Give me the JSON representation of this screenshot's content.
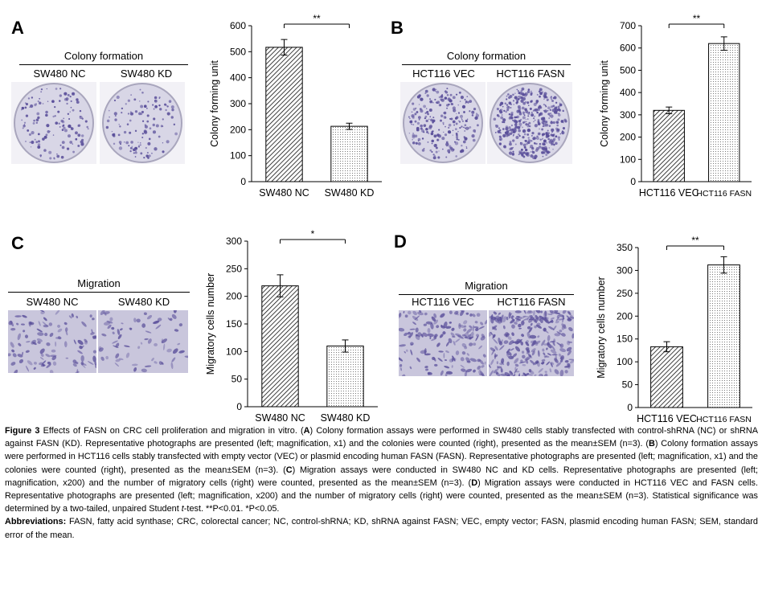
{
  "panels": {
    "A": {
      "letter": "A",
      "group_label": "Colony formation",
      "samples": [
        "SW480 NC",
        "SW480 KD"
      ]
    },
    "B": {
      "letter": "B",
      "group_label": "Colony formation",
      "samples": [
        "HCT116 VEC",
        "HCT116 FASN"
      ]
    },
    "C": {
      "letter": "C",
      "group_label": "Migration",
      "samples": [
        "SW480 NC",
        "SW480 KD"
      ]
    },
    "D": {
      "letter": "D",
      "group_label": "Migration",
      "samples": [
        "HCT116 VEC",
        "HCT116 FASN"
      ]
    }
  },
  "chart_data": [
    {
      "id": "A",
      "type": "bar",
      "categories": [
        "SW480 NC",
        "SW480 KD"
      ],
      "values": [
        517,
        213
      ],
      "errors": [
        30,
        12
      ],
      "ylabel": "Colony forming unit",
      "ylim": [
        0,
        600
      ],
      "yticks": [
        0,
        100,
        200,
        300,
        400,
        500,
        600
      ],
      "significance": "**",
      "patterns": [
        "hatch",
        "dots"
      ]
    },
    {
      "id": "B",
      "type": "bar",
      "categories": [
        "HCT116 VEC",
        "HCT116 FASN"
      ],
      "values": [
        320,
        620
      ],
      "errors": [
        15,
        30
      ],
      "ylabel": "Colony forming unit",
      "ylim": [
        0,
        700
      ],
      "yticks": [
        0,
        100,
        200,
        300,
        400,
        500,
        600,
        700
      ],
      "significance": "**",
      "patterns": [
        "hatch",
        "dots"
      ]
    },
    {
      "id": "C",
      "type": "bar",
      "categories": [
        "SW480 NC",
        "SW480 KD"
      ],
      "values": [
        219,
        110
      ],
      "errors": [
        20,
        11
      ],
      "ylabel": "Migratory cells number",
      "ylim": [
        0,
        300
      ],
      "yticks": [
        0,
        50,
        100,
        150,
        200,
        250,
        300
      ],
      "significance": "*",
      "patterns": [
        "hatch",
        "dots"
      ]
    },
    {
      "id": "D",
      "type": "bar",
      "categories": [
        "HCT116 VEC",
        "HCT116 FASN"
      ],
      "values": [
        133,
        312
      ],
      "errors": [
        11,
        18
      ],
      "ylabel": "Migratory cells number",
      "ylim": [
        0,
        350
      ],
      "yticks": [
        0,
        50,
        100,
        150,
        200,
        250,
        300,
        350
      ],
      "significance": "**",
      "patterns": [
        "hatch",
        "dots"
      ]
    }
  ],
  "caption": {
    "figure_label": "Figure 3",
    "lead": "Effects of FASN on CRC cell proliferation and migration in vitro. (",
    "a_letter": "A",
    "a_text": ") Colony formation assays were performed in SW480 cells stably transfected with control-shRNA (NC) or shRNA against FASN (KD). Representative photographs are presented (left; magnification, x1) and the colonies were counted (right), presented as the mean±SEM (n=3). (",
    "b_letter": "B",
    "b_text": ") Colony formation assays were performed in HCT116 cells stably transfected with empty vector (VEC) or plasmid encoding human FASN (FASN). Representative photographs are presented (left; magnification, x1) and the colonies were counted (right), presented as the mean±SEM (n=3). (",
    "c_letter": "C",
    "c_text": ") Migration assays were conducted in SW480 NC and KD cells. Representative photographs are presented (left; magnification, x200) and the number of migratory cells (right) were counted, presented as the mean±SEM (n=3). (",
    "d_letter": "D",
    "d_text": ") Migration assays were conducted in HCT116 VEC and FASN cells. Representative photographs are presented (left; magnification, x200) and the number of migratory cells (right) were counted, presented as the mean±SEM (n=3). Statistical significance was determined by a two-tailed, unpaired Student ",
    "t_italic": "t",
    "tail": "-test. **P<0.01. *P<0.05.",
    "abbrev_label": "Abbreviations:",
    "abbrev_text": " FASN, fatty acid synthase; CRC, colorectal cancer; NC, control-shRNA; KD, shRNA against FASN; VEC, empty vector; FASN, plasmid encoding human FASN; SEM, standard error of the mean."
  },
  "colors": {
    "stain": "#5a4f9a",
    "plate_bg": "#d8d6e6",
    "migration_bg": "#c9c6dc"
  }
}
